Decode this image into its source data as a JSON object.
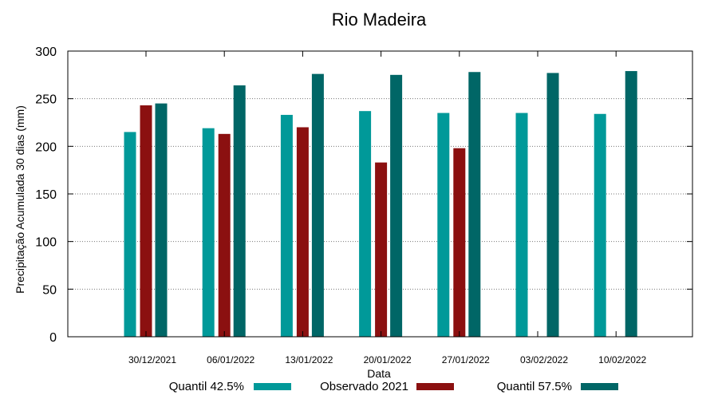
{
  "chart_data": {
    "type": "bar",
    "title": "Rio Madeira",
    "xlabel": "Data",
    "ylabel": "Precipitação Acumulada 30 dias (mm)",
    "ylim": [
      0,
      300
    ],
    "yticks": [
      0,
      50,
      100,
      150,
      200,
      250,
      300
    ],
    "grid": "horizontal-dotted",
    "legend_position": "bottom",
    "categories": [
      "30/12/2021",
      "06/01/2022",
      "13/01/2022",
      "20/01/2022",
      "27/01/2022",
      "03/02/2022",
      "10/02/2022"
    ],
    "series": [
      {
        "name": "Quantil 42.5%",
        "color": "#009999",
        "values": [
          215,
          219,
          233,
          237,
          235,
          235,
          234
        ]
      },
      {
        "name": "Observado 2021",
        "color": "#8b1010",
        "values": [
          243,
          213,
          220,
          183,
          198,
          null,
          null
        ]
      },
      {
        "name": "Quantil 57.5%",
        "color": "#006666",
        "values": [
          245,
          264,
          276,
          275,
          278,
          277,
          279
        ]
      }
    ]
  }
}
